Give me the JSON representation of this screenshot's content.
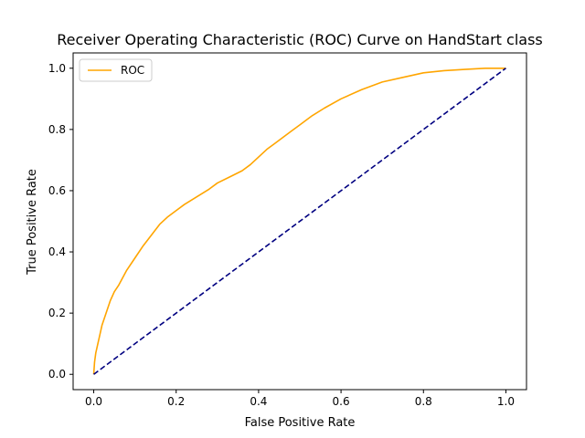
{
  "chart_data": {
    "type": "line",
    "title": "Receiver Operating Characteristic (ROC) Curve on HandStart class",
    "xlabel": "False Positive Rate",
    "ylabel": "True Positive Rate",
    "xlim": [
      -0.05,
      1.05
    ],
    "ylim": [
      -0.05,
      1.05
    ],
    "xticks": [
      0.0,
      0.2,
      0.4,
      0.6,
      0.8,
      1.0
    ],
    "yticks": [
      0.0,
      0.2,
      0.4,
      0.6,
      0.8,
      1.0
    ],
    "xtick_labels": [
      "0.0",
      "0.2",
      "0.4",
      "0.6",
      "0.8",
      "1.0"
    ],
    "ytick_labels": [
      "0.0",
      "0.2",
      "0.4",
      "0.6",
      "0.8",
      "1.0"
    ],
    "grid": false,
    "legend": {
      "placement": "top-left",
      "entries": [
        "ROC"
      ]
    },
    "series": [
      {
        "name": "ROC",
        "color": "#ffa500",
        "style": "solid",
        "x": [
          0.0,
          0.002,
          0.005,
          0.01,
          0.015,
          0.02,
          0.03,
          0.04,
          0.05,
          0.06,
          0.08,
          0.1,
          0.12,
          0.14,
          0.16,
          0.18,
          0.2,
          0.22,
          0.25,
          0.28,
          0.3,
          0.33,
          0.36,
          0.38,
          0.4,
          0.42,
          0.44,
          0.46,
          0.48,
          0.5,
          0.53,
          0.56,
          0.6,
          0.65,
          0.7,
          0.75,
          0.8,
          0.85,
          0.9,
          0.95,
          1.0
        ],
        "y": [
          0.0,
          0.04,
          0.07,
          0.1,
          0.13,
          0.16,
          0.2,
          0.24,
          0.27,
          0.29,
          0.34,
          0.38,
          0.42,
          0.455,
          0.49,
          0.515,
          0.535,
          0.555,
          0.58,
          0.605,
          0.625,
          0.645,
          0.665,
          0.685,
          0.71,
          0.735,
          0.755,
          0.775,
          0.795,
          0.815,
          0.845,
          0.87,
          0.9,
          0.93,
          0.955,
          0.97,
          0.985,
          0.992,
          0.996,
          1.0,
          1.0
        ]
      },
      {
        "color": "#000080",
        "style": "dashed",
        "x": [
          0.0,
          1.0
        ],
        "y": [
          0.0,
          1.0
        ]
      }
    ]
  }
}
